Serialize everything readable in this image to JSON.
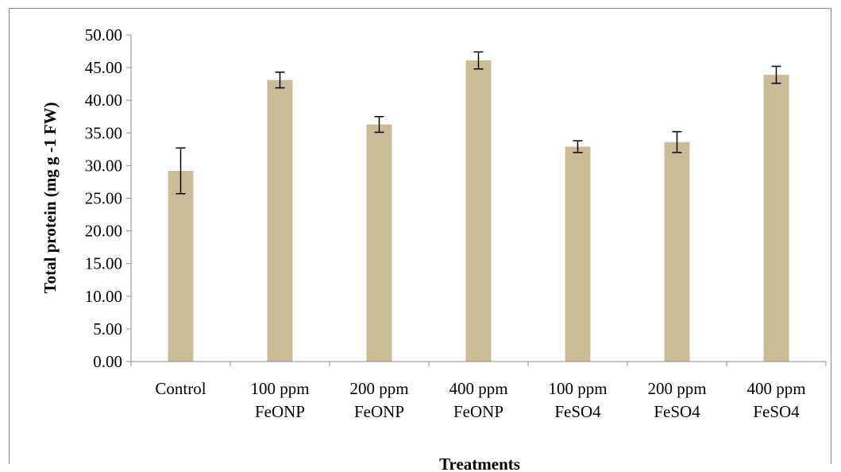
{
  "chart_data": {
    "type": "bar",
    "title": "",
    "xlabel": "Treatments",
    "ylabel": "Total protein (mg g -1 FW)",
    "ylim": [
      0,
      50
    ],
    "y_ticks": [
      "0.00",
      "5.00",
      "10.00",
      "15.00",
      "20.00",
      "25.00",
      "30.00",
      "35.00",
      "40.00",
      "45.00",
      "50.00"
    ],
    "grid": false,
    "legend": "none",
    "bar_color": "#c8bd96",
    "categories": [
      [
        "Control"
      ],
      [
        "100 ppm",
        "FeONP"
      ],
      [
        "200 ppm",
        "FeONP"
      ],
      [
        "400 ppm",
        "FeONP"
      ],
      [
        "100 ppm",
        "FeSO4"
      ],
      [
        "200 ppm",
        "FeSO4"
      ],
      [
        "400 ppm",
        "FeSO4"
      ]
    ],
    "values": [
      29.2,
      43.1,
      36.3,
      46.1,
      32.9,
      33.6,
      43.9
    ],
    "error_bars": [
      3.5,
      1.2,
      1.2,
      1.3,
      0.9,
      1.6,
      1.3
    ]
  }
}
